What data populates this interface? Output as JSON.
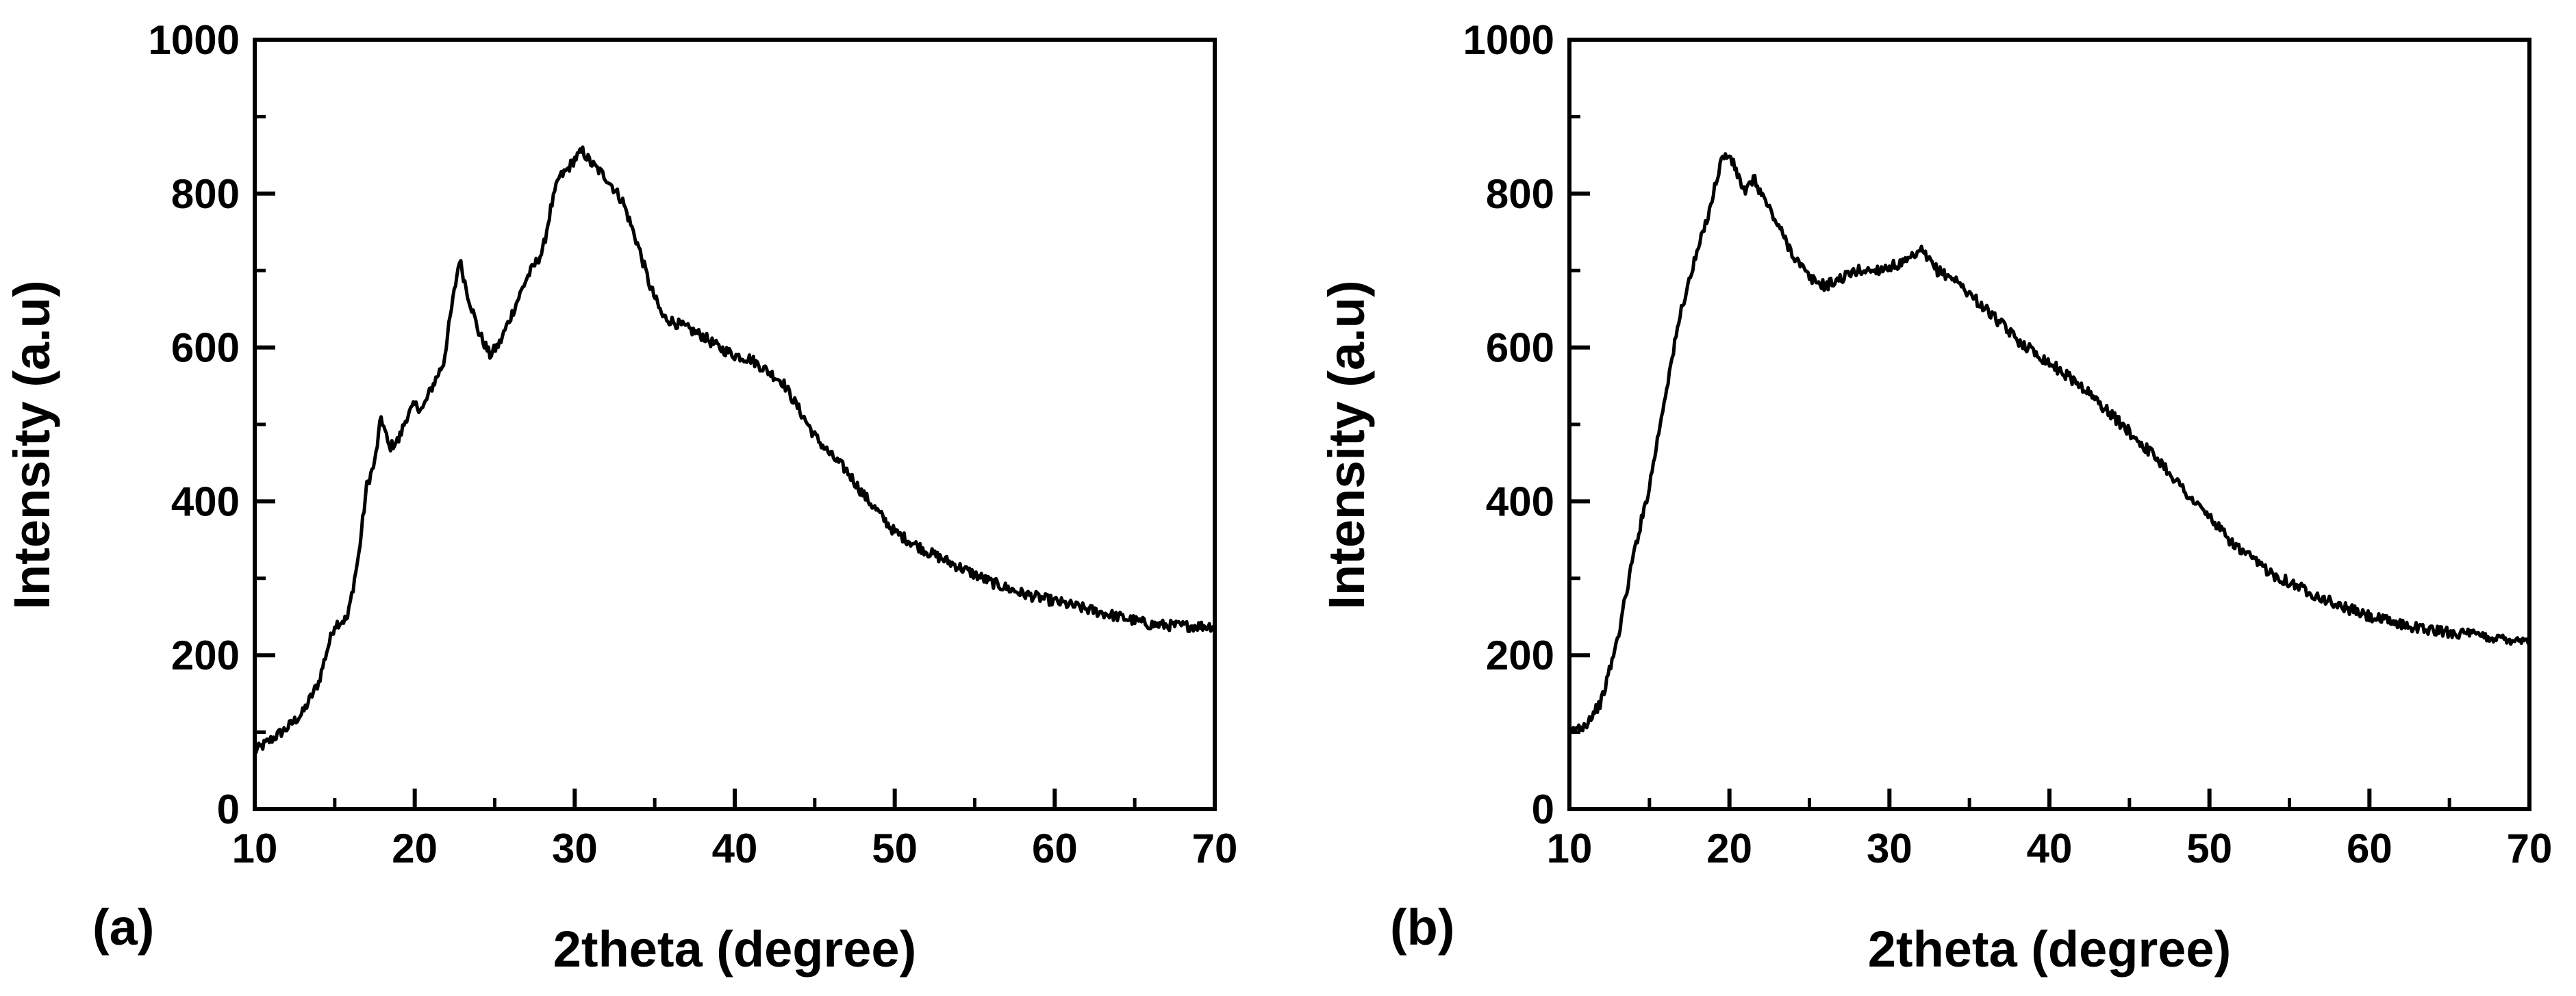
{
  "chart_data": [
    {
      "type": "line",
      "panel_label": "(a)",
      "xlabel": "2theta (degree)",
      "ylabel": "Intensity (a.u)",
      "xlim": [
        10,
        70
      ],
      "ylim": [
        0,
        1000
      ],
      "x_ticks": [
        10,
        20,
        30,
        40,
        50,
        60,
        70
      ],
      "y_ticks": [
        0,
        200,
        400,
        600,
        800,
        1000
      ],
      "grid": false,
      "series": [
        {
          "color": "#000000",
          "points": [
            [
              10,
              75
            ],
            [
              11,
              90
            ],
            [
              12,
              105
            ],
            [
              13,
              125
            ],
            [
              14,
              165
            ],
            [
              14.5,
              205
            ],
            [
              15,
              240
            ],
            [
              15.8,
              248
            ],
            [
              16.5,
              330
            ],
            [
              17,
              420
            ],
            [
              17.5,
              450
            ],
            [
              17.9,
              510
            ],
            [
              18.4,
              470
            ],
            [
              19,
              480
            ],
            [
              19.5,
              510
            ],
            [
              20,
              525
            ],
            [
              20.5,
              520
            ],
            [
              21,
              545
            ],
            [
              21.8,
              580
            ],
            [
              22.3,
              650
            ],
            [
              22.8,
              715
            ],
            [
              23.3,
              670
            ],
            [
              24,
              620
            ],
            [
              24.7,
              590
            ],
            [
              25.3,
              605
            ],
            [
              26,
              640
            ],
            [
              27,
              690
            ],
            [
              28,
              725
            ],
            [
              28.5,
              780
            ],
            [
              29,
              820
            ],
            [
              29.5,
              830
            ],
            [
              30,
              845
            ],
            [
              30.5,
              855
            ],
            [
              31,
              840
            ],
            [
              32,
              820
            ],
            [
              33,
              790
            ],
            [
              34,
              730
            ],
            [
              34.7,
              680
            ],
            [
              35.5,
              640
            ],
            [
              37,
              625
            ],
            [
              38,
              615
            ],
            [
              39,
              600
            ],
            [
              40,
              590
            ],
            [
              41,
              585
            ],
            [
              42,
              570
            ],
            [
              43,
              555
            ],
            [
              44,
              520
            ],
            [
              45,
              485
            ],
            [
              46,
              460
            ],
            [
              47,
              440
            ],
            [
              48,
              410
            ],
            [
              49,
              385
            ],
            [
              50,
              360
            ],
            [
              52,
              335
            ],
            [
              54,
              315
            ],
            [
              56,
              295
            ],
            [
              58,
              280
            ],
            [
              60,
              270
            ],
            [
              62,
              260
            ],
            [
              64,
              250
            ],
            [
              66,
              240
            ],
            [
              68,
              238
            ],
            [
              70,
              238
            ]
          ]
        }
      ]
    },
    {
      "type": "line",
      "panel_label": "(b)",
      "xlabel": "2theta (degree)",
      "ylabel": "Intensity (a.u)",
      "xlim": [
        10,
        70
      ],
      "ylim": [
        0,
        1000
      ],
      "x_ticks": [
        10,
        20,
        30,
        40,
        50,
        60,
        70
      ],
      "y_ticks": [
        0,
        200,
        400,
        600,
        800,
        1000
      ],
      "grid": false,
      "series": [
        {
          "color": "#000000",
          "points": [
            [
              10,
              100
            ],
            [
              11,
              110
            ],
            [
              12,
              140
            ],
            [
              13,
              220
            ],
            [
              14,
              330
            ],
            [
              15,
              420
            ],
            [
              16,
              540
            ],
            [
              17,
              650
            ],
            [
              17.8,
              710
            ],
            [
              18.5,
              760
            ],
            [
              19,
              800
            ],
            [
              19.5,
              845
            ],
            [
              20,
              850
            ],
            [
              20.5,
              825
            ],
            [
              21,
              800
            ],
            [
              21.5,
              820
            ],
            [
              22,
              800
            ],
            [
              23,
              760
            ],
            [
              24,
              720
            ],
            [
              25,
              690
            ],
            [
              26,
              680
            ],
            [
              27,
              690
            ],
            [
              28,
              700
            ],
            [
              29,
              700
            ],
            [
              30,
              705
            ],
            [
              31,
              710
            ],
            [
              32,
              725
            ],
            [
              33,
              700
            ],
            [
              34,
              690
            ],
            [
              35,
              670
            ],
            [
              36,
              650
            ],
            [
              37,
              630
            ],
            [
              38,
              610
            ],
            [
              39,
              595
            ],
            [
              40,
              580
            ],
            [
              41,
              565
            ],
            [
              42,
              550
            ],
            [
              43,
              530
            ],
            [
              44,
              510
            ],
            [
              45,
              490
            ],
            [
              46,
              470
            ],
            [
              47,
              450
            ],
            [
              48,
              425
            ],
            [
              49,
              400
            ],
            [
              50,
              380
            ],
            [
              51,
              355
            ],
            [
              52,
              335
            ],
            [
              53,
              320
            ],
            [
              54,
              305
            ],
            [
              55,
              295
            ],
            [
              56,
              285
            ],
            [
              57,
              275
            ],
            [
              58,
              265
            ],
            [
              59,
              258
            ],
            [
              60,
              250
            ],
            [
              62,
              240
            ],
            [
              64,
              232
            ],
            [
              66,
              228
            ],
            [
              68,
              222
            ],
            [
              70,
              220
            ]
          ]
        }
      ]
    }
  ]
}
